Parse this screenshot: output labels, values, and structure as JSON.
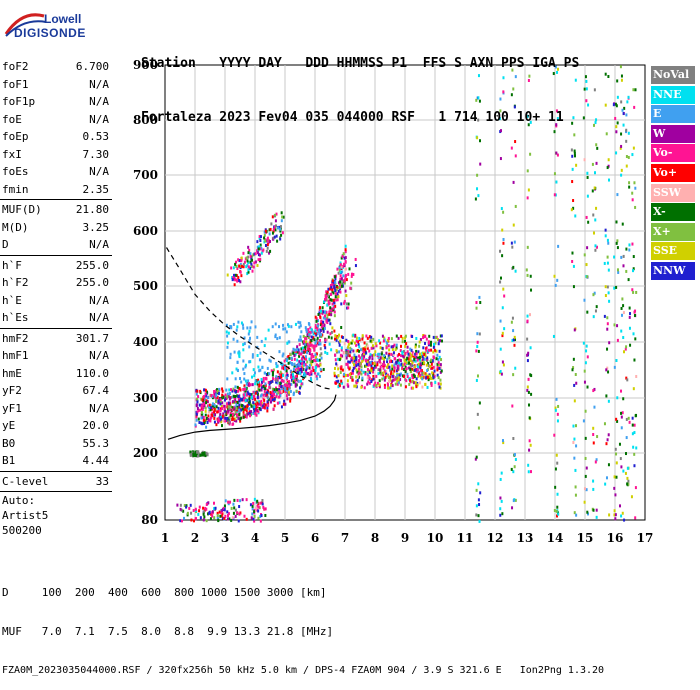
{
  "logo": {
    "line1": "Lowell",
    "line2": "DIGISONDE"
  },
  "header": {
    "labels": "Station   YYYY DAY   DDD HHMMSS P1  FFS S AXN PPS IGA PS",
    "values": "Fortaleza 2023 Fev04 035 044000 RSF   1 714 100 10+ 11"
  },
  "params": {
    "group1": [
      {
        "name": "foF2",
        "value": "6.700"
      },
      {
        "name": "foF1",
        "value": "N/A"
      },
      {
        "name": "foF1p",
        "value": "N/A"
      },
      {
        "name": "foE",
        "value": "N/A"
      },
      {
        "name": "foEp",
        "value": "0.53"
      },
      {
        "name": "fxI",
        "value": "7.30"
      },
      {
        "name": "foEs",
        "value": "N/A"
      },
      {
        "name": "fmin",
        "value": "2.35"
      }
    ],
    "group2": [
      {
        "name": "MUF(D)",
        "value": "21.80"
      },
      {
        "name": "M(D)",
        "value": "3.25"
      },
      {
        "name": "D",
        "value": "N/A"
      }
    ],
    "group3": [
      {
        "name": "h`F",
        "value": "255.0"
      },
      {
        "name": "h`F2",
        "value": "255.0"
      },
      {
        "name": "h`E",
        "value": "N/A"
      },
      {
        "name": "h`Es",
        "value": "N/A"
      }
    ],
    "group4": [
      {
        "name": "hmF2",
        "value": "301.7"
      },
      {
        "name": "hmF1",
        "value": "N/A"
      },
      {
        "name": "hmE",
        "value": "110.0"
      },
      {
        "name": "yF2",
        "value": "67.4"
      },
      {
        "name": "yF1",
        "value": "N/A"
      },
      {
        "name": "yE",
        "value": "20.0"
      },
      {
        "name": "B0",
        "value": "55.3"
      },
      {
        "name": "B1",
        "value": "4.44"
      }
    ],
    "group5": [
      {
        "name": "C-level",
        "value": "33"
      }
    ]
  },
  "auto": {
    "line1": "Auto:",
    "line2": "Artist5",
    "line3": "500200"
  },
  "legend": [
    {
      "label": "NoVal",
      "color": "#808080"
    },
    {
      "label": "NNE",
      "color": "#00e0f0"
    },
    {
      "label": "E",
      "color": "#40a0f0"
    },
    {
      "label": "W",
      "color": "#a000a0"
    },
    {
      "label": "Vo-",
      "color": "#ff1493"
    },
    {
      "label": "Vo+",
      "color": "#ff0000"
    },
    {
      "label": "SSW",
      "color": "#ffb0b0"
    },
    {
      "label": "X-",
      "color": "#007000"
    },
    {
      "label": "X+",
      "color": "#80c040"
    },
    {
      "label": "SSE",
      "color": "#d0d000"
    },
    {
      "label": "NNW",
      "color": "#2020d0"
    }
  ],
  "bottom": {
    "d_row": "D     100  200  400  600  800 1000 1500 3000 [km]",
    "muf_row": "MUF   7.0  7.1  7.5  8.0  8.8  9.9 13.3 21.8 [MHz]",
    "footer": "FZA0M_2023035044000.RSF / 320fx256h 50 kHz 5.0 km / DPS-4 FZA0M 904 / 3.9 S 321.6 E   Ion2Png 1.3.20"
  },
  "chart_data": {
    "type": "scatter",
    "title": "",
    "xlabel": "",
    "ylabel": "",
    "xlim": [
      1,
      17
    ],
    "ylim": [
      80,
      900
    ],
    "x_ticks": [
      "1",
      "2",
      "3",
      "4",
      "5",
      "6",
      "7",
      "8",
      "9",
      "10",
      "11",
      "12",
      "13",
      "14",
      "15",
      "16",
      "17"
    ],
    "y_ticks": [
      "80",
      "200",
      "300",
      "400",
      "500",
      "600",
      "700",
      "800",
      "900"
    ],
    "grid": true,
    "legend_position": "right",
    "profile_curve": {
      "x": [
        1.1,
        1.5,
        2.0,
        2.5,
        3.0,
        3.5,
        4.0,
        4.5,
        5.0,
        5.5,
        6.0,
        6.3,
        6.5,
        6.65,
        6.7
      ],
      "y": [
        225,
        232,
        238,
        241,
        243,
        245,
        247,
        250,
        254,
        259,
        267,
        276,
        285,
        296,
        306
      ]
    },
    "dashed_curve": {
      "x": [
        1.05,
        1.5,
        2.0,
        2.5,
        3.0,
        3.5,
        4.0,
        4.5,
        5.0,
        5.5,
        6.0,
        6.3,
        6.5
      ],
      "y": [
        570,
        530,
        485,
        455,
        430,
        410,
        392,
        375,
        358,
        340,
        325,
        318,
        316
      ]
    },
    "echo_traces": [
      {
        "name": "O-trace F2",
        "x": [
          2.0,
          2.5,
          3.0,
          3.5,
          4.0,
          4.5,
          5.0,
          5.5,
          6.0,
          6.3,
          6.6
        ],
        "y": [
          258,
          265,
          272,
          280,
          290,
          302,
          318,
          338,
          372,
          420,
          520
        ]
      },
      {
        "name": "X-trace F2",
        "x": [
          2.8,
          3.3,
          4.0,
          4.5,
          5.0,
          5.5,
          6.0,
          6.5,
          7.0,
          7.2
        ],
        "y": [
          270,
          278,
          290,
          300,
          312,
          332,
          360,
          400,
          470,
          560
        ]
      },
      {
        "name": "Second-hop",
        "x": [
          3.2,
          3.5,
          4.0,
          4.5,
          4.8
        ],
        "y": [
          520,
          535,
          560,
          590,
          620
        ]
      },
      {
        "name": "Oblique cloud",
        "x": [
          6.8,
          7.5,
          8.0,
          8.5,
          9.0,
          9.5,
          10.0
        ],
        "y": [
          370,
          368,
          365,
          362,
          360,
          358,
          355
        ]
      },
      {
        "name": "Es/low",
        "x": [
          1.5,
          2.0,
          2.5,
          3.0,
          3.5,
          4.0,
          4.2
        ],
        "y": [
          90,
          92,
          95,
          98,
          100,
          100,
          95
        ]
      }
    ]
  }
}
